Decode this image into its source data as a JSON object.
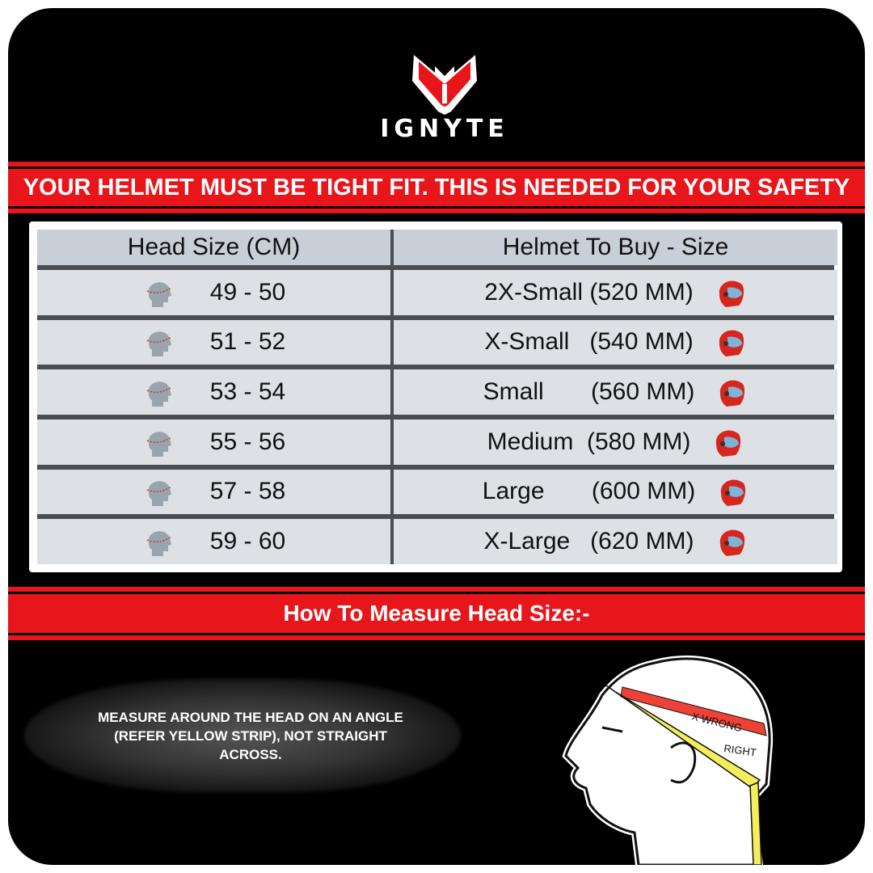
{
  "brand": {
    "name": "IGNYTE",
    "accent": "#e8161b"
  },
  "banner_top": "YOUR HELMET MUST BE TIGHT FIT. THIS IS NEEDED FOR YOUR SAFETY",
  "table": {
    "headers": [
      "Head Size (CM)",
      "Helmet To Buy - Size"
    ],
    "rows": [
      {
        "head": "49 - 50",
        "size": "2X-Small (520 MM)"
      },
      {
        "head": "51 - 52",
        "size": "X-Small   (540 MM)"
      },
      {
        "head": "53 - 54",
        "size": "Small       (560 MM)"
      },
      {
        "head": "55 - 56",
        "size": "Medium  (580 MM)"
      },
      {
        "head": "57 - 58",
        "size": "Large       (600 MM)"
      },
      {
        "head": "59 - 60",
        "size": "X-Large   (620 MM)"
      }
    ]
  },
  "banner_bottom": "How To Measure Head Size:-",
  "instruction": "MEASURE AROUND THE HEAD ON AN ANGLE (REFER YELLOW STRIP), NOT STRAIGHT ACROSS.",
  "illustration": {
    "wrong_label": "X WRONG",
    "right_label": "RIGHT"
  }
}
